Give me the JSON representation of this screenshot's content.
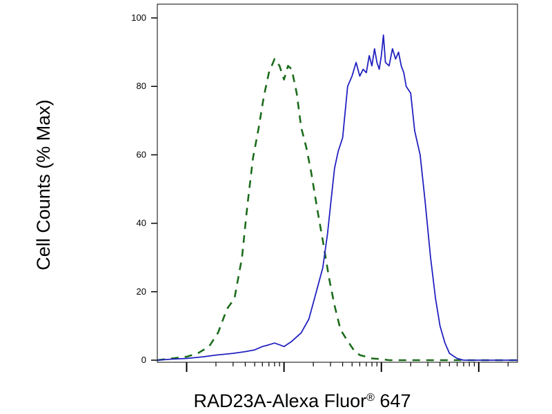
{
  "chart_data": {
    "type": "line",
    "title": "",
    "xlabel": "RAD23A-Alexa Fluor",
    "xlabel_mark": "®",
    "xlabel_suffix": " 647",
    "ylabel": "Cell Counts (% Max)",
    "x_scale": "log",
    "xlim": [
      0.05,
      250
    ],
    "ylim": [
      0,
      100
    ],
    "y_ticks": [
      0,
      20,
      40,
      60,
      80,
      100
    ],
    "x_major_ticks": [
      0.1,
      1,
      10,
      100
    ],
    "grid": false,
    "legend": "none",
    "series": [
      {
        "style": "dashed",
        "color": "#1a6b1a",
        "x": [
          0.05,
          0.07,
          0.1,
          0.13,
          0.17,
          0.21,
          0.26,
          0.31,
          0.37,
          0.42,
          0.48,
          0.55,
          0.62,
          0.7,
          0.8,
          0.9,
          1.0,
          1.1,
          1.2,
          1.35,
          1.5,
          1.7,
          1.9,
          2.2,
          2.5,
          2.9,
          3.3,
          3.8,
          4.4,
          5.2,
          6.0,
          7.0,
          8.0,
          10,
          12,
          15,
          20,
          30,
          60,
          120,
          250
        ],
        "y": [
          0,
          0.5,
          1,
          2,
          4,
          8,
          15,
          18,
          30,
          45,
          59,
          68,
          77,
          84,
          88,
          86,
          82,
          86,
          85,
          78,
          68,
          62,
          55,
          44,
          35,
          24,
          16,
          9,
          6,
          3,
          1.5,
          1,
          0.5,
          0.3,
          0,
          0,
          0,
          0,
          0,
          0,
          0
        ]
      },
      {
        "style": "solid",
        "color": "#2020c0",
        "x": [
          0.05,
          0.07,
          0.1,
          0.15,
          0.2,
          0.3,
          0.4,
          0.5,
          0.6,
          0.7,
          0.8,
          0.9,
          1.0,
          1.2,
          1.5,
          1.8,
          2.1,
          2.5,
          2.8,
          3.0,
          3.3,
          3.6,
          4.0,
          4.5,
          5.0,
          5.5,
          6.0,
          6.5,
          7.0,
          7.5,
          8.0,
          8.5,
          9.0,
          9.5,
          10.0,
          10.5,
          11,
          12,
          13,
          14,
          15,
          16,
          17,
          18,
          20,
          22,
          25,
          28,
          32,
          36,
          40,
          45,
          50,
          60,
          70,
          80,
          90,
          100,
          120,
          150,
          200,
          250
        ],
        "y": [
          0,
          0.3,
          0.5,
          1,
          1.5,
          2,
          2.5,
          3,
          4,
          4.5,
          5,
          4.5,
          4,
          5.5,
          8,
          12,
          19,
          27,
          37,
          45,
          56,
          61,
          65,
          80,
          83,
          87,
          83,
          85,
          84,
          89,
          86,
          91,
          87,
          85,
          89,
          95,
          87,
          86,
          91,
          88,
          90,
          86,
          84,
          80,
          78,
          67,
          60,
          47,
          30,
          18,
          10,
          5,
          2,
          0.5,
          0,
          0,
          0,
          0,
          0,
          0,
          0,
          0
        ]
      }
    ]
  }
}
